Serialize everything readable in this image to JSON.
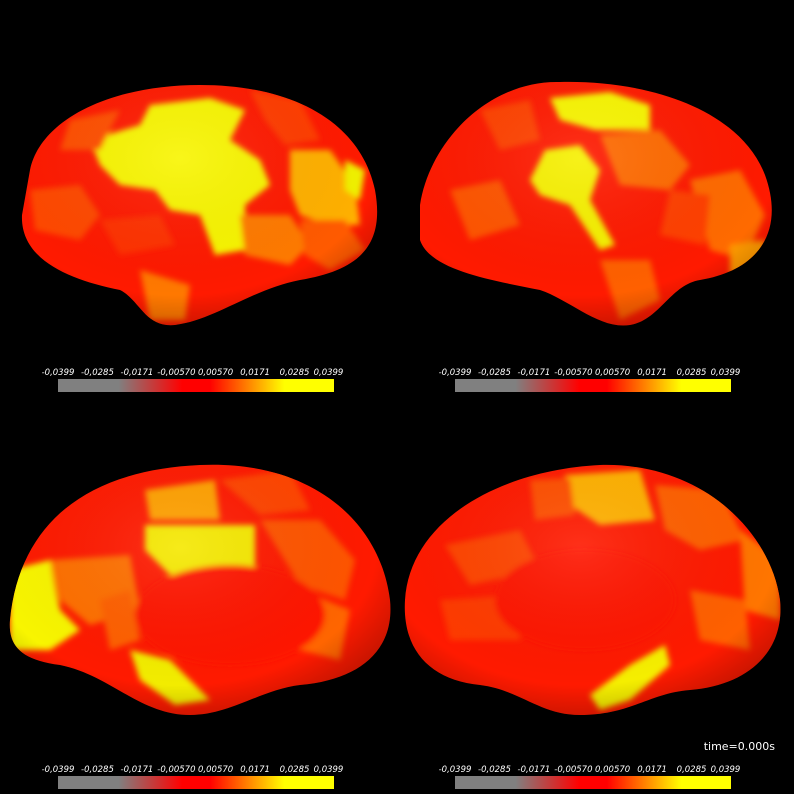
{
  "colorbar": {
    "ticks": [
      "-0,0399",
      "-0,0285",
      "-0,0171",
      "-0,00570",
      "0,00570",
      "0,0171",
      "0,0285",
      "0,0399"
    ],
    "colors": [
      "#808080",
      "#ff0000",
      "#ffff00"
    ]
  },
  "time_label": "time=0.000s",
  "views": [
    "left-lateral",
    "right-lateral",
    "left-medial",
    "right-medial"
  ]
}
